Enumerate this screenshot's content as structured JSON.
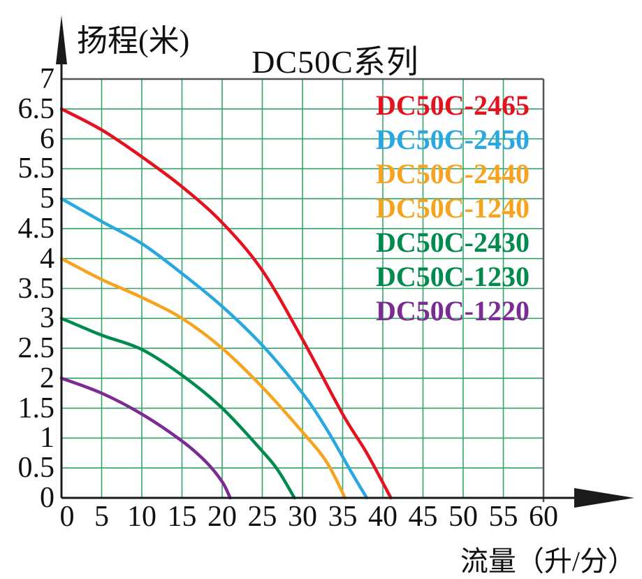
{
  "title": "DC50C系列",
  "y_axis_label": "扬程(米)",
  "x_axis_label": "流量（升/分）",
  "colors": {
    "red": "#e4111e",
    "sky_blue": "#29a8e0",
    "orange": "#f6a41f",
    "green": "#008a4e",
    "purple": "#7b2c93",
    "grid_green": "#33a467",
    "axis_black": "#1a1a1a",
    "border_gray": "#555555",
    "text_black": "#111111"
  },
  "legend": [
    {
      "label": "DC50C-2465",
      "color": "#e4111e"
    },
    {
      "label": "DC50C-2450",
      "color": "#29a8e0"
    },
    {
      "label": "DC50C-2440",
      "color": "#f6a41f"
    },
    {
      "label": "DC50C-1240",
      "color": "#f6a41f"
    },
    {
      "label": "DC50C-2430",
      "color": "#008a4e"
    },
    {
      "label": "DC50C-1230",
      "color": "#008a4e"
    },
    {
      "label": "DC50C-1220",
      "color": "#7b2c93"
    }
  ],
  "chart_data": {
    "type": "line",
    "title": "DC50C系列",
    "xlabel": "流量（升/分）",
    "ylabel": "扬程(米)",
    "xlim": [
      0,
      60
    ],
    "ylim": [
      0,
      7
    ],
    "x_ticks": [
      0,
      5,
      10,
      15,
      20,
      25,
      30,
      35,
      40,
      45,
      50,
      55,
      60
    ],
    "y_ticks": [
      0,
      0.5,
      1,
      1.5,
      2,
      2.5,
      3,
      3.5,
      4,
      4.5,
      5,
      5.5,
      6,
      6.5,
      7
    ],
    "grid": true,
    "legend_position": "inside-top-right",
    "series": [
      {
        "names": [
          "DC50C-2465"
        ],
        "color": "#e4111e",
        "points": [
          [
            0,
            6.5
          ],
          [
            5,
            6.15
          ],
          [
            10,
            5.7
          ],
          [
            15,
            5.2
          ],
          [
            20,
            4.6
          ],
          [
            25,
            3.8
          ],
          [
            30,
            2.65
          ],
          [
            35,
            1.4
          ],
          [
            38,
            0.75
          ],
          [
            41,
            0
          ]
        ]
      },
      {
        "names": [
          "DC50C-2450"
        ],
        "color": "#29a8e0",
        "points": [
          [
            0,
            5.0
          ],
          [
            5,
            4.62
          ],
          [
            10,
            4.25
          ],
          [
            15,
            3.75
          ],
          [
            20,
            3.2
          ],
          [
            25,
            2.55
          ],
          [
            30,
            1.75
          ],
          [
            33,
            1.15
          ],
          [
            36,
            0.45
          ],
          [
            38,
            0
          ]
        ]
      },
      {
        "names": [
          "DC50C-2440",
          "DC50C-1240"
        ],
        "color": "#f6a41f",
        "points": [
          [
            0,
            4.0
          ],
          [
            5,
            3.65
          ],
          [
            10,
            3.35
          ],
          [
            15,
            3.0
          ],
          [
            20,
            2.5
          ],
          [
            25,
            1.85
          ],
          [
            30,
            1.1
          ],
          [
            33,
            0.6
          ],
          [
            35.3,
            0
          ]
        ]
      },
      {
        "names": [
          "DC50C-2430",
          "DC50C-1230"
        ],
        "color": "#008a4e",
        "points": [
          [
            0,
            3.0
          ],
          [
            5,
            2.72
          ],
          [
            10,
            2.48
          ],
          [
            15,
            2.05
          ],
          [
            20,
            1.5
          ],
          [
            25,
            0.78
          ],
          [
            27,
            0.45
          ],
          [
            29,
            0
          ]
        ]
      },
      {
        "names": [
          "DC50C-1220"
        ],
        "color": "#7b2c93",
        "points": [
          [
            0,
            2.0
          ],
          [
            5,
            1.75
          ],
          [
            10,
            1.4
          ],
          [
            15,
            0.95
          ],
          [
            18,
            0.6
          ],
          [
            20,
            0.27
          ],
          [
            21,
            0
          ]
        ]
      }
    ]
  }
}
